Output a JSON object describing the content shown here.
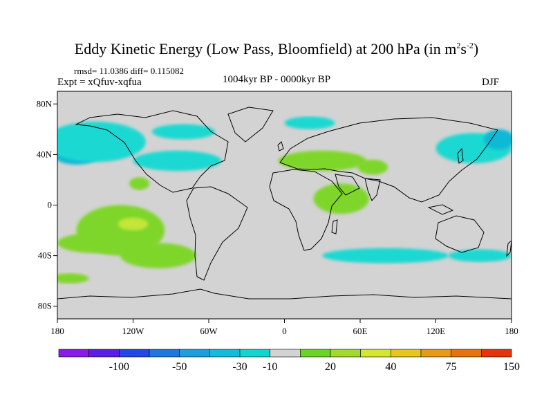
{
  "title": {
    "prefix": "Eddy Kinetic Energy (Low Pass, Bloomfield) at 200 hPa (in m",
    "sup1": "2",
    "mid": "s",
    "sup2": "-2",
    "suffix": ")"
  },
  "stats": "rmsd= 11.0386 diff= 0.115082",
  "experiment": "Expt = xQfuv-xqfua",
  "period": "1004kyr BP - 0000kyr BP",
  "season": "DJF",
  "map": {
    "projection": "equirectangular",
    "lon_range": [
      -180,
      180
    ],
    "lat_range": [
      -90,
      90
    ],
    "background_color": "#d3d3d3",
    "x_ticks": [
      {
        "lon": -180,
        "label": "180"
      },
      {
        "lon": -120,
        "label": "120W"
      },
      {
        "lon": -60,
        "label": "60W"
      },
      {
        "lon": 0,
        "label": "0"
      },
      {
        "lon": 60,
        "label": "60E"
      },
      {
        "lon": 120,
        "label": "120E"
      },
      {
        "lon": 180,
        "label": "180"
      }
    ],
    "y_ticks": [
      {
        "lat": 80,
        "label": "80N"
      },
      {
        "lat": 40,
        "label": "40N"
      },
      {
        "lat": 0,
        "label": "0"
      },
      {
        "lat": -40,
        "label": "40S"
      },
      {
        "lat": -80,
        "label": "80S"
      }
    ],
    "anomaly_regions": [
      {
        "level": -30,
        "color": "#10b9d6",
        "lon": -165,
        "lat": 42,
        "rlon": 20,
        "rlat": 10
      },
      {
        "level": -10,
        "color": "#1fd8d2",
        "lon": -150,
        "lat": 50,
        "rlon": 40,
        "rlat": 16
      },
      {
        "level": -10,
        "color": "#1fd8d2",
        "lon": -85,
        "lat": 35,
        "rlon": 35,
        "rlat": 8
      },
      {
        "level": -10,
        "color": "#1fd8d2",
        "lon": -80,
        "lat": 58,
        "rlon": 25,
        "rlat": 6
      },
      {
        "level": -10,
        "color": "#1fd8d2",
        "lon": 20,
        "lat": 65,
        "rlon": 20,
        "rlat": 5
      },
      {
        "level": -10,
        "color": "#1fd8d2",
        "lon": 150,
        "lat": 45,
        "rlon": 30,
        "rlat": 12
      },
      {
        "level": -30,
        "color": "#10b9d6",
        "lon": 170,
        "lat": 52,
        "rlon": 12,
        "rlat": 8
      },
      {
        "level": -10,
        "color": "#1fd8d2",
        "lon": 80,
        "lat": -40,
        "rlon": 50,
        "rlat": 6
      },
      {
        "level": -10,
        "color": "#1fd8d2",
        "lon": 155,
        "lat": -40,
        "rlon": 25,
        "rlat": 5
      },
      {
        "level": 20,
        "color": "#7fd62b",
        "lon": -130,
        "lat": -20,
        "rlon": 35,
        "rlat": 20
      },
      {
        "level": 20,
        "color": "#7fd62b",
        "lon": -150,
        "lat": -30,
        "rlon": 30,
        "rlat": 8
      },
      {
        "level": 20,
        "color": "#7fd62b",
        "lon": -100,
        "lat": -40,
        "rlon": 30,
        "rlat": 10
      },
      {
        "level": 30,
        "color": "#c4e639",
        "lon": -120,
        "lat": -15,
        "rlon": 12,
        "rlat": 5
      },
      {
        "level": 20,
        "color": "#7fd62b",
        "lon": -115,
        "lat": 17,
        "rlon": 8,
        "rlat": 5
      },
      {
        "level": 20,
        "color": "#7fd62b",
        "lon": 30,
        "lat": 35,
        "rlon": 35,
        "rlat": 8
      },
      {
        "level": 20,
        "color": "#7fd62b",
        "lon": 45,
        "lat": 5,
        "rlon": 22,
        "rlat": 12
      },
      {
        "level": 20,
        "color": "#7fd62b",
        "lon": -170,
        "lat": -58,
        "rlon": 15,
        "rlat": 4
      },
      {
        "level": 20,
        "color": "#7fd62b",
        "lon": 70,
        "lat": 30,
        "rlon": 12,
        "rlat": 6
      }
    ]
  },
  "colorbar": {
    "colors": [
      "#8a1be6",
      "#5a1ee6",
      "#2448e6",
      "#1f77de",
      "#1f9ede",
      "#12bcd9",
      "#10d6cf",
      "#d3d3d3",
      "#6bd42b",
      "#a1d92e",
      "#d4e632",
      "#e6c61f",
      "#e69a17",
      "#e67312",
      "#e6330e"
    ],
    "labels": [
      {
        "after": 1,
        "text": "-100"
      },
      {
        "after": 3,
        "text": "-50"
      },
      {
        "after": 5,
        "text": "-30"
      },
      {
        "after": 6,
        "text": "-10"
      },
      {
        "after": 8,
        "text": "20"
      },
      {
        "after": 10,
        "text": "40"
      },
      {
        "after": 12,
        "text": "75"
      },
      {
        "after": 14,
        "text": "150"
      }
    ]
  }
}
